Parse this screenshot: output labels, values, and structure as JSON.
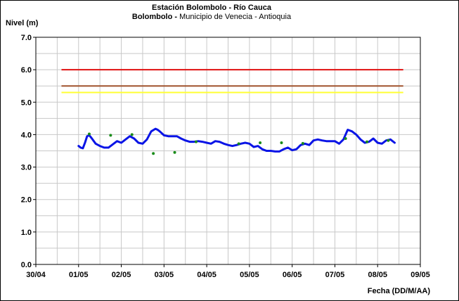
{
  "chart_data": {
    "type": "line",
    "title": "Estación Bolombolo - Río Cauca",
    "subtitle_bold": "Bolombolo - ",
    "subtitle_rest": "Municipio de Venecia - Antioquia",
    "ylabel": "Nivel (m)",
    "xlabel": "Fecha (DD/M/AA)",
    "ylim": [
      0,
      7
    ],
    "y_ticks": [
      "0.0",
      "1.0",
      "2.0",
      "3.0",
      "4.0",
      "5.0",
      "6.0",
      "7.0"
    ],
    "x_ticks": [
      "30/04",
      "01/05",
      "02/05",
      "03/05",
      "04/05",
      "05/05",
      "06/05",
      "07/05",
      "08/05",
      "09/05"
    ],
    "xlim": [
      0,
      9
    ],
    "grid": true,
    "thresholds": [
      {
        "value": 6.0,
        "color": "#e01010"
      },
      {
        "value": 5.5,
        "color": "#a0522d"
      },
      {
        "value": 5.3,
        "color": "#ffff33"
      }
    ],
    "threshold_x_range": [
      0.6,
      8.6
    ],
    "series": [
      {
        "style": "line",
        "color": "#0a14e6",
        "x": [
          1.0,
          1.05,
          1.1,
          1.15,
          1.2,
          1.25,
          1.3,
          1.4,
          1.5,
          1.6,
          1.7,
          1.8,
          1.9,
          2.0,
          2.1,
          2.2,
          2.3,
          2.4,
          2.5,
          2.6,
          2.7,
          2.8,
          2.85,
          2.9,
          3.0,
          3.1,
          3.2,
          3.3,
          3.4,
          3.5,
          3.6,
          3.7,
          3.8,
          3.9,
          4.0,
          4.1,
          4.2,
          4.3,
          4.4,
          4.5,
          4.6,
          4.7,
          4.8,
          4.9,
          5.0,
          5.1,
          5.2,
          5.3,
          5.4,
          5.5,
          5.6,
          5.7,
          5.8,
          5.9,
          6.0,
          6.1,
          6.2,
          6.3,
          6.4,
          6.5,
          6.6,
          6.7,
          6.8,
          6.9,
          7.0,
          7.1,
          7.2,
          7.3,
          7.4,
          7.5,
          7.6,
          7.7,
          7.8,
          7.9,
          8.0,
          8.1,
          8.2,
          8.3,
          8.4
        ],
        "y": [
          3.65,
          3.6,
          3.58,
          3.75,
          3.95,
          3.98,
          3.9,
          3.72,
          3.65,
          3.6,
          3.6,
          3.7,
          3.8,
          3.75,
          3.85,
          3.95,
          3.88,
          3.75,
          3.72,
          3.85,
          4.1,
          4.18,
          4.15,
          4.1,
          3.98,
          3.95,
          3.95,
          3.95,
          3.88,
          3.82,
          3.78,
          3.78,
          3.8,
          3.78,
          3.75,
          3.72,
          3.8,
          3.78,
          3.72,
          3.68,
          3.65,
          3.68,
          3.72,
          3.75,
          3.72,
          3.62,
          3.65,
          3.55,
          3.5,
          3.5,
          3.48,
          3.48,
          3.55,
          3.6,
          3.52,
          3.55,
          3.68,
          3.72,
          3.68,
          3.82,
          3.85,
          3.82,
          3.8,
          3.8,
          3.8,
          3.72,
          3.85,
          4.15,
          4.1,
          4.0,
          3.85,
          3.75,
          3.78,
          3.88,
          3.75,
          3.72,
          3.82,
          3.85,
          3.75
        ]
      },
      {
        "style": "points",
        "color": "#1a8c1a",
        "x": [
          1.25,
          1.75,
          2.25,
          2.75,
          3.25,
          3.75,
          4.75,
          5.25,
          5.75,
          6.25,
          7.25,
          7.75,
          8.25
        ],
        "y": [
          4.02,
          3.98,
          4.0,
          3.42,
          3.45,
          3.78,
          3.72,
          3.75,
          3.75,
          3.73,
          3.88,
          3.78,
          3.82
        ]
      }
    ]
  }
}
